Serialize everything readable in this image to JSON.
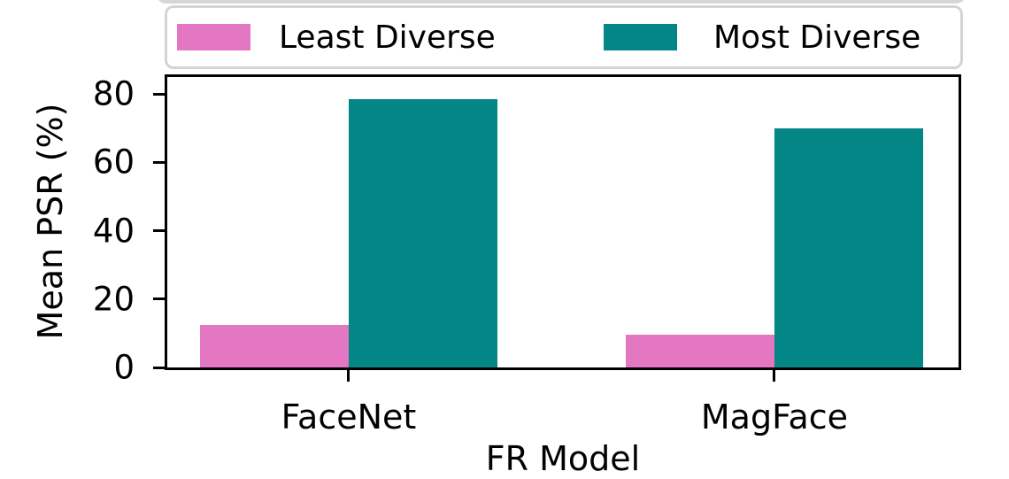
{
  "colors": {
    "least_diverse": "#e377c2",
    "most_diverse": "#048586",
    "axis": "#000000",
    "legend_border": "#d4d4d4",
    "background": "#ffffff"
  },
  "chart_data": {
    "type": "bar",
    "title": "",
    "xlabel": "FR Model",
    "ylabel": "Mean PSR (%)",
    "categories": [
      "FaceNet",
      "MagFace"
    ],
    "series": [
      {
        "name": "Least Diverse",
        "color": "#e377c2",
        "values": [
          12.5,
          9.5
        ]
      },
      {
        "name": "Most Diverse",
        "color": "#048586",
        "values": [
          78.5,
          70.0
        ]
      }
    ],
    "yticks": [
      0,
      20,
      40,
      60,
      80
    ],
    "ylim": [
      0,
      85
    ],
    "grid": false,
    "legend_position": "top"
  }
}
